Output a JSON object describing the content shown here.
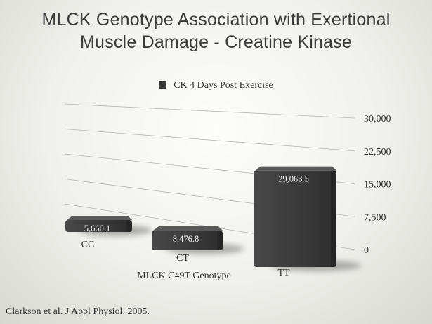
{
  "title_lines": [
    "MLCK Genotype Association with Exertional",
    "Muscle Damage - Creatine Kinase"
  ],
  "source": "Clarkson et al. J Appl Physiol. 2005.",
  "colors": {
    "bar": "#3d3d3d",
    "bar_top": "#5a5a5a",
    "gridline": "#b5b5b5",
    "text": "#333333"
  },
  "chart_data": {
    "type": "bar",
    "categories": [
      "CC",
      "CT",
      "TT"
    ],
    "series": [
      {
        "name": "CK 4 Days Post Exercise",
        "values": [
          5660.1,
          8476.8,
          29063.5
        ]
      }
    ],
    "data_labels": [
      "5,660.1",
      "8,476.8",
      "29,063.5"
    ],
    "xlabel": "MLCK C49T Genotype",
    "ylabel": "",
    "ylim": [
      0,
      30000
    ],
    "yticks": [
      0,
      7500,
      15000,
      22500,
      30000
    ],
    "ytick_labels": [
      "0",
      "7,500",
      "15,000",
      "22,500",
      "30,000"
    ],
    "grid": true,
    "legend_position": "top",
    "style": "3d-perspective"
  }
}
